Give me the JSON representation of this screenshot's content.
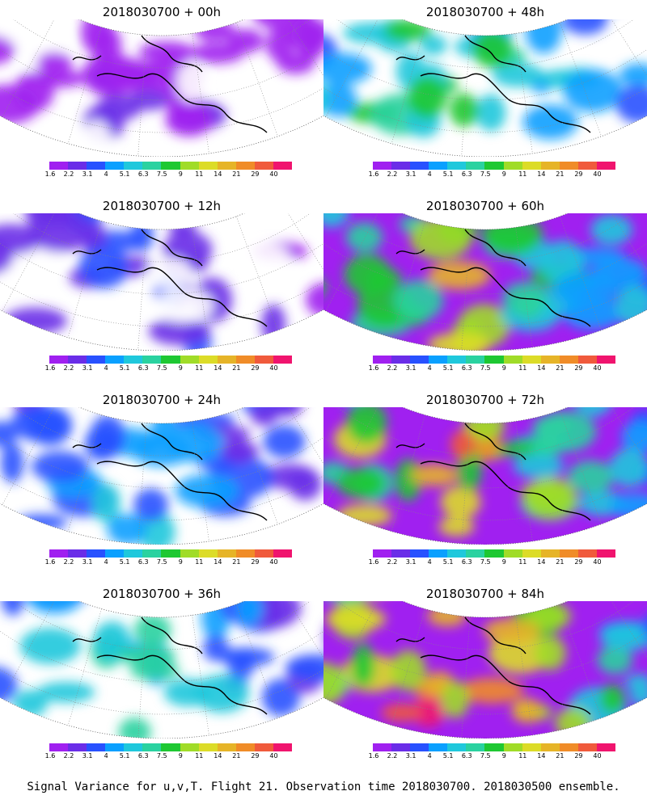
{
  "figure": {
    "footer": "Signal Variance for u,v,T. Flight 21. Observation time 2018030700. 2018030500 ensemble."
  },
  "colorbar": {
    "labels": [
      "1.6",
      "2.2",
      "3.1",
      "4",
      "5.1",
      "6.3",
      "7.5",
      "9",
      "11",
      "14",
      "21",
      "29",
      "40"
    ],
    "colors": [
      "#a020f0",
      "#6a2de8",
      "#2851ff",
      "#0aa0ff",
      "#1fc8dc",
      "#2ad2a0",
      "#1ec832",
      "#a0dc28",
      "#dcdc28",
      "#e6b428",
      "#f08c28",
      "#f05a3c",
      "#f0146e"
    ]
  },
  "panels": [
    {
      "title": "2018030700 + 00h",
      "intensity": 0.1
    },
    {
      "title": "2018030700 + 48h",
      "intensity": 0.55
    },
    {
      "title": "2018030700 + 12h",
      "intensity": 0.2
    },
    {
      "title": "2018030700 + 60h",
      "intensity": 0.7
    },
    {
      "title": "2018030700 + 24h",
      "intensity": 0.32
    },
    {
      "title": "2018030700 + 72h",
      "intensity": 0.82
    },
    {
      "title": "2018030700 + 36h",
      "intensity": 0.42
    },
    {
      "title": "2018030700 + 84h",
      "intensity": 0.9
    }
  ]
}
